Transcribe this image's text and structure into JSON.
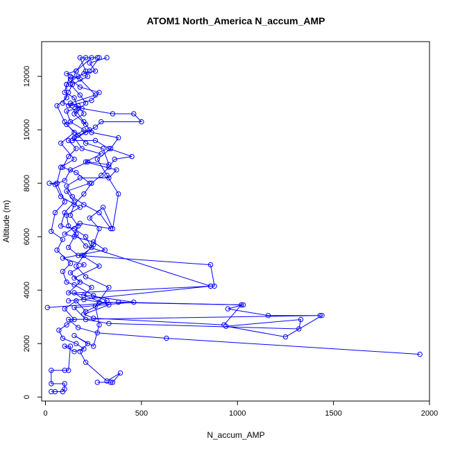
{
  "chart_data": {
    "type": "line",
    "title": "ATOM1 North_America N_accum_AMP",
    "xlabel": "N_accum_AMP",
    "ylabel": "Altitude (m)",
    "xlim": [
      -20,
      2000
    ],
    "ylim": [
      -150,
      13300
    ],
    "xticks": [
      0,
      500,
      1000,
      1500,
      2000
    ],
    "xtick_labels": [
      "0",
      "500",
      "1000",
      "1500",
      "2000"
    ],
    "yticks": [
      0,
      2000,
      4000,
      6000,
      8000,
      10000,
      12000
    ],
    "ytick_labels": [
      "0",
      "2000",
      "4000",
      "6000",
      "8000",
      "10000",
      "12000"
    ],
    "grid": false,
    "legend": "none",
    "marker": "open-circle",
    "series_color": "#0000ff",
    "series": [
      {
        "points": [
          [
            1950,
            1600
          ],
          [
            630,
            2200
          ],
          [
            270,
            2400
          ],
          [
            170,
            2600
          ],
          [
            120,
            2900
          ],
          [
            1430,
            3050
          ],
          [
            1160,
            3050
          ],
          [
            950,
            3300
          ],
          [
            1030,
            3450
          ],
          [
            280,
            3550
          ],
          [
            200,
            3650
          ],
          [
            150,
            3900
          ],
          [
            860,
            4150
          ],
          [
            880,
            4150
          ],
          [
            860,
            4950
          ],
          [
            170,
            5300
          ],
          [
            120,
            5600
          ],
          [
            150,
            6000
          ],
          [
            170,
            6400
          ],
          [
            130,
            6800
          ],
          [
            150,
            7200
          ],
          [
            200,
            7600
          ],
          [
            240,
            8000
          ],
          [
            290,
            8300
          ],
          [
            330,
            8600
          ],
          [
            360,
            8900
          ],
          [
            450,
            9000
          ],
          [
            330,
            9300
          ],
          [
            260,
            9600
          ],
          [
            140,
            9600
          ],
          [
            210,
            9900
          ],
          [
            260,
            10100
          ],
          [
            290,
            10300
          ],
          [
            500,
            10300
          ],
          [
            460,
            10600
          ],
          [
            350,
            10600
          ],
          [
            190,
            10800
          ],
          [
            140,
            10900
          ],
          [
            90,
            11000
          ],
          [
            120,
            11400
          ],
          [
            140,
            11700
          ],
          [
            220,
            12000
          ],
          [
            210,
            12200
          ],
          [
            180,
            12700
          ],
          [
            270,
            12700
          ]
        ]
      },
      {
        "points": [
          [
            1440,
            3050
          ],
          [
            1250,
            2250
          ],
          [
            940,
            2650
          ],
          [
            1330,
            2900
          ],
          [
            1320,
            2550
          ],
          [
            330,
            2750
          ],
          [
            210,
            2900
          ],
          [
            150,
            3350
          ],
          [
            460,
            3550
          ],
          [
            120,
            3900
          ],
          [
            180,
            4300
          ],
          [
            130,
            4650
          ],
          [
            200,
            4950
          ],
          [
            90,
            5200
          ],
          [
            310,
            5500
          ],
          [
            250,
            5800
          ],
          [
            100,
            6100
          ],
          [
            180,
            6500
          ],
          [
            340,
            6300
          ],
          [
            280,
            6900
          ],
          [
            200,
            7200
          ],
          [
            140,
            7500
          ],
          [
            110,
            7900
          ],
          [
            180,
            8200
          ],
          [
            330,
            8200
          ],
          [
            370,
            8500
          ],
          [
            210,
            8800
          ],
          [
            290,
            9100
          ],
          [
            190,
            9300
          ],
          [
            150,
            9700
          ],
          [
            230,
            10000
          ],
          [
            200,
            10300
          ],
          [
            160,
            10700
          ],
          [
            120,
            10900
          ],
          [
            240,
            11100
          ],
          [
            280,
            11400
          ],
          [
            180,
            11600
          ],
          [
            130,
            11900
          ],
          [
            200,
            12100
          ],
          [
            260,
            12200
          ],
          [
            230,
            12500
          ],
          [
            320,
            12700
          ]
        ]
      },
      {
        "points": [
          [
            10,
            3350
          ],
          [
            380,
            3550
          ],
          [
            1020,
            3450
          ],
          [
            930,
            2700
          ],
          [
            250,
            2950
          ],
          [
            200,
            3100
          ],
          [
            330,
            3450
          ],
          [
            200,
            3800
          ],
          [
            240,
            4100
          ],
          [
            150,
            4450
          ],
          [
            280,
            4900
          ],
          [
            190,
            5300
          ],
          [
            240,
            5600
          ],
          [
            210,
            6000
          ],
          [
            150,
            6300
          ],
          [
            80,
            6400
          ],
          [
            100,
            6900
          ],
          [
            150,
            7300
          ],
          [
            110,
            7700
          ],
          [
            230,
            8000
          ],
          [
            160,
            8400
          ],
          [
            90,
            8600
          ],
          [
            120,
            9000
          ],
          [
            160,
            9300
          ],
          [
            120,
            9600
          ],
          [
            200,
            10000
          ],
          [
            130,
            10300
          ],
          [
            110,
            10700
          ],
          [
            170,
            10800
          ],
          [
            150,
            11200
          ],
          [
            100,
            11400
          ],
          [
            110,
            11700
          ],
          [
            170,
            12000
          ],
          [
            230,
            12200
          ],
          [
            280,
            12700
          ]
        ]
      },
      {
        "points": [
          [
            120,
            3600
          ],
          [
            860,
            4150
          ],
          [
            210,
            5650
          ],
          [
            160,
            6100
          ],
          [
            120,
            6400
          ],
          [
            110,
            6800
          ],
          [
            180,
            7100
          ],
          [
            80,
            7500
          ],
          [
            50,
            7950
          ],
          [
            20,
            8000
          ],
          [
            60,
            8000
          ],
          [
            100,
            8100
          ],
          [
            130,
            8500
          ],
          [
            220,
            8800
          ],
          [
            330,
            8700
          ],
          [
            300,
            9300
          ],
          [
            210,
            9500
          ],
          [
            170,
            9800
          ],
          [
            110,
            10200
          ],
          [
            200,
            10600
          ],
          [
            170,
            10900
          ],
          [
            130,
            11000
          ],
          [
            260,
            11300
          ],
          [
            180,
            11900
          ],
          [
            110,
            12100
          ],
          [
            160,
            12200
          ],
          [
            210,
            12700
          ]
        ]
      },
      {
        "points": [
          [
            30,
            200
          ],
          [
            50,
            200
          ],
          [
            90,
            200
          ],
          [
            100,
            300
          ],
          [
            100,
            500
          ],
          [
            30,
            500
          ],
          [
            30,
            1000
          ],
          [
            100,
            1000
          ],
          [
            120,
            1000
          ],
          [
            130,
            1900
          ],
          [
            100,
            1900
          ],
          [
            150,
            1700
          ],
          [
            200,
            1800
          ],
          [
            160,
            2000
          ],
          [
            90,
            2200
          ],
          [
            70,
            2500
          ],
          [
            110,
            2700
          ],
          [
            150,
            2900
          ],
          [
            100,
            3300
          ],
          [
            160,
            3600
          ],
          [
            210,
            3200
          ],
          [
            320,
            3600
          ],
          [
            250,
            3800
          ],
          [
            150,
            4200
          ],
          [
            110,
            4300
          ],
          [
            90,
            4700
          ],
          [
            130,
            5000
          ],
          [
            60,
            5500
          ],
          [
            90,
            5900
          ],
          [
            30,
            6200
          ],
          [
            50,
            6900
          ],
          [
            100,
            7300
          ],
          [
            60,
            8000
          ],
          [
            80,
            8600
          ],
          [
            150,
            8900
          ],
          [
            80,
            9500
          ],
          [
            150,
            9900
          ],
          [
            100,
            10300
          ],
          [
            60,
            10900
          ],
          [
            110,
            11200
          ],
          [
            110,
            11700
          ],
          [
            130,
            12000
          ]
        ]
      },
      {
        "points": [
          [
            270,
            550
          ],
          [
            340,
            550
          ],
          [
            350,
            550
          ],
          [
            390,
            900
          ],
          [
            320,
            600
          ],
          [
            210,
            1300
          ],
          [
            180,
            1700
          ],
          [
            220,
            2000
          ],
          [
            150,
            2300
          ],
          [
            250,
            1900
          ],
          [
            280,
            2700
          ],
          [
            260,
            3400
          ],
          [
            330,
            4100
          ],
          [
            210,
            4500
          ],
          [
            160,
            4900
          ],
          [
            200,
            5300
          ],
          [
            250,
            5700
          ],
          [
            280,
            6300
          ],
          [
            230,
            6700
          ],
          [
            300,
            7100
          ],
          [
            350,
            6300
          ],
          [
            380,
            7600
          ],
          [
            320,
            8300
          ],
          [
            270,
            8900
          ],
          [
            340,
            9300
          ],
          [
            380,
            9700
          ],
          [
            240,
            9900
          ],
          [
            210,
            10200
          ],
          [
            150,
            10600
          ],
          [
            210,
            11000
          ],
          [
            180,
            11300
          ],
          [
            130,
            11700
          ],
          [
            160,
            12200
          ],
          [
            240,
            12700
          ]
        ]
      }
    ]
  }
}
